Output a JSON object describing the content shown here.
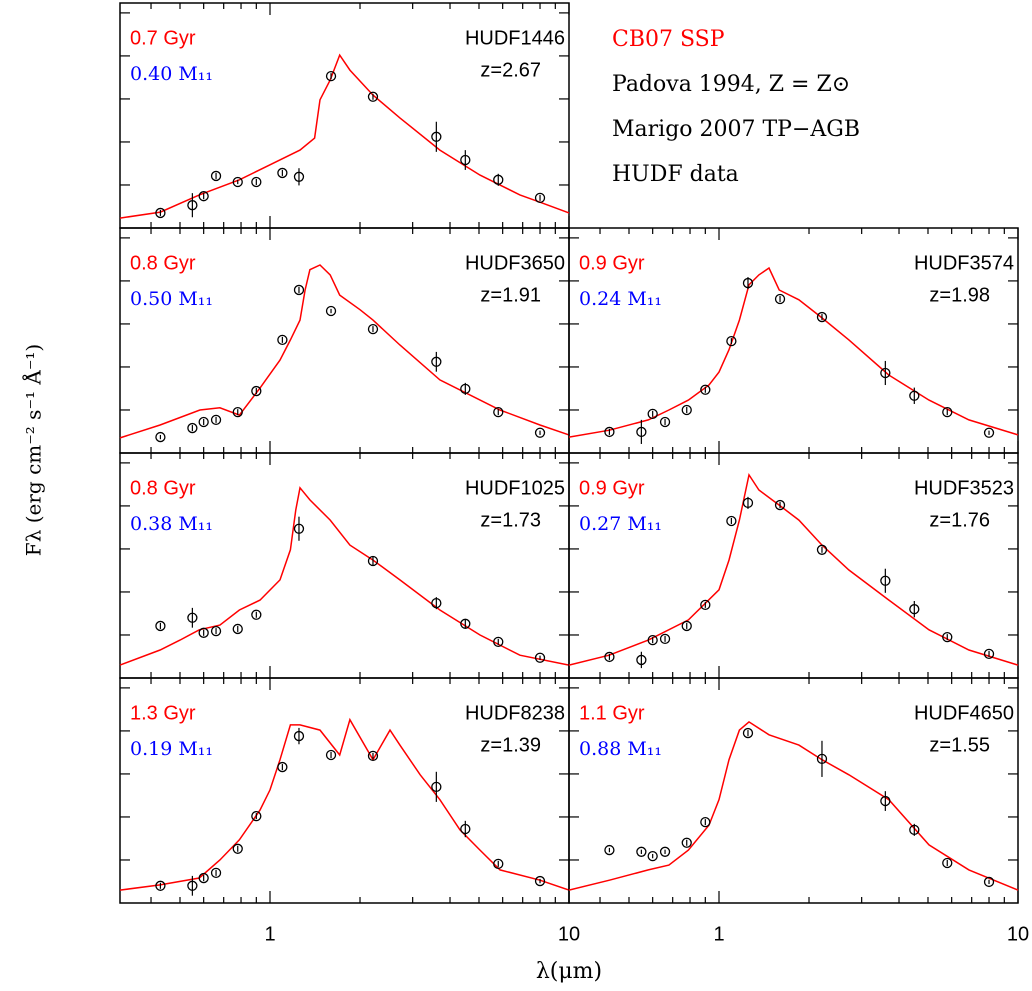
{
  "chart_data": {
    "type": "line",
    "xlabel": "λ(μm)",
    "ylabel": "Fλ  (erg cm⁻² s⁻¹ Å⁻¹)",
    "log_x": true,
    "xlim": [
      0.315,
      10
    ],
    "xticks": [
      1,
      10
    ],
    "xminor": [
      0.4,
      0.5,
      0.6,
      0.7,
      0.8,
      0.9,
      2,
      3,
      4,
      5,
      6,
      7,
      8,
      9
    ],
    "ylim": [
      0,
      5.23
    ],
    "yticks": [
      1,
      2,
      3,
      4,
      5
    ],
    "model_color": "#ff0000",
    "data_color": "#000000",
    "legend": [
      "CB07 SSP",
      "Padova 1994, Z = Z⊙",
      "Marigo 2007 TP−AGB",
      "HUDF data"
    ],
    "panels": [
      {
        "name": "HUDF1446",
        "redshift": "z=2.67",
        "age": "0.7 Gyr",
        "mass": "0.40 M₁₁",
        "model": {
          "x": [
            0.315,
            0.43,
            0.58,
            0.79,
            1.0,
            1.26,
            1.41,
            1.47,
            1.59,
            1.71,
            1.85,
            2.21,
            2.72,
            3.7,
            5.04,
            6.85,
            8.0,
            10
          ],
          "y": [
            0.23,
            0.37,
            0.77,
            1.12,
            1.47,
            1.81,
            2.09,
            2.98,
            3.44,
            4.02,
            3.67,
            3.09,
            2.56,
            1.81,
            1.23,
            0.77,
            0.6,
            0.35
          ]
        },
        "photometry": {
          "x": [
            0.43,
            0.55,
            0.6,
            0.66,
            0.78,
            0.9,
            1.1,
            1.25,
            1.6,
            2.21,
            3.6,
            4.5,
            5.8,
            8.0
          ],
          "y": [
            0.35,
            0.53,
            0.74,
            1.21,
            1.07,
            1.07,
            1.28,
            1.19,
            3.53,
            3.05,
            2.12,
            1.58,
            1.12,
            0.7
          ],
          "err": [
            0.07,
            0.28,
            0.07,
            0.07,
            0.05,
            0.07,
            0.07,
            0.2,
            0.07,
            0.07,
            0.35,
            0.23,
            0.14,
            0.07
          ]
        }
      },
      {
        "name": "HUDF3650",
        "redshift": "z=1.91",
        "age": "0.8 Gyr",
        "mass": "0.50 M₁₁",
        "model": {
          "x": [
            0.315,
            0.429,
            0.583,
            0.68,
            0.79,
            0.926,
            1.08,
            1.17,
            1.26,
            1.31,
            1.36,
            1.47,
            1.59,
            1.71,
            2.0,
            2.21,
            2.72,
            3.7,
            5.88,
            8.0,
            10
          ],
          "y": [
            0.35,
            0.65,
            1.0,
            1.05,
            0.88,
            1.51,
            2.16,
            2.63,
            3.09,
            3.79,
            4.26,
            4.37,
            4.14,
            3.67,
            3.33,
            3.09,
            2.51,
            1.7,
            1.0,
            0.65,
            0.42
          ]
        },
        "photometry": {
          "x": [
            0.43,
            0.55,
            0.6,
            0.66,
            0.78,
            0.9,
            1.1,
            1.25,
            1.6,
            2.21,
            3.6,
            4.5,
            5.8,
            8.0
          ],
          "y": [
            0.37,
            0.58,
            0.72,
            0.77,
            0.95,
            1.44,
            2.63,
            3.79,
            3.3,
            2.88,
            2.12,
            1.49,
            0.95,
            0.47
          ],
          "err": [
            0.05,
            0.07,
            0.07,
            0.07,
            0.07,
            0.07,
            0.07,
            0.07,
            0.05,
            0.07,
            0.23,
            0.14,
            0.07,
            0.05
          ]
        }
      },
      {
        "name": "HUDF3574",
        "redshift": "z=1.98",
        "age": "0.9 Gyr",
        "mass": "0.24 M₁₁",
        "model": {
          "x": [
            0.315,
            0.43,
            0.58,
            0.68,
            0.79,
            0.926,
            1.0,
            1.08,
            1.17,
            1.26,
            1.36,
            1.47,
            1.59,
            1.85,
            2.21,
            2.72,
            3.7,
            5.04,
            6.85,
            10
          ],
          "y": [
            0.37,
            0.53,
            0.77,
            1.0,
            1.23,
            1.58,
            1.88,
            2.4,
            3.09,
            3.91,
            4.14,
            4.3,
            3.79,
            3.56,
            3.14,
            2.63,
            1.81,
            1.23,
            0.77,
            0.42
          ]
        },
        "photometry": {
          "x": [
            0.43,
            0.55,
            0.6,
            0.66,
            0.78,
            0.9,
            1.1,
            1.25,
            1.6,
            2.21,
            3.6,
            4.5,
            5.8,
            8.0
          ],
          "y": [
            0.49,
            0.49,
            0.91,
            0.72,
            1.0,
            1.47,
            2.6,
            3.95,
            3.58,
            3.16,
            1.86,
            1.33,
            0.95,
            0.47
          ],
          "err": [
            0.07,
            0.28,
            0.07,
            0.07,
            0.07,
            0.07,
            0.07,
            0.14,
            0.07,
            0.07,
            0.28,
            0.19,
            0.07,
            0.05
          ]
        }
      },
      {
        "name": "HUDF1025",
        "redshift": "z=1.73",
        "age": "0.8 Gyr",
        "mass": "0.38 M₁₁",
        "model": {
          "x": [
            0.315,
            0.429,
            0.5,
            0.58,
            0.68,
            0.79,
            0.926,
            1.08,
            1.17,
            1.22,
            1.26,
            1.36,
            1.59,
            1.85,
            2.21,
            2.72,
            3.7,
            5.04,
            6.85,
            10
          ],
          "y": [
            0.3,
            0.65,
            0.88,
            1.12,
            1.23,
            1.58,
            1.81,
            2.28,
            2.98,
            3.91,
            4.42,
            4.14,
            3.67,
            3.09,
            2.74,
            2.28,
            1.58,
            1.0,
            0.53,
            0.3
          ]
        },
        "photometry": {
          "x": [
            0.43,
            0.55,
            0.6,
            0.66,
            0.78,
            0.9,
            1.25,
            2.21,
            3.6,
            4.5,
            5.8,
            8.0
          ],
          "y": [
            1.21,
            1.4,
            1.05,
            1.09,
            1.14,
            1.47,
            3.47,
            2.72,
            1.74,
            1.26,
            0.84,
            0.47
          ],
          "err": [
            0.07,
            0.23,
            0.07,
            0.07,
            0.07,
            0.07,
            0.28,
            0.1,
            0.14,
            0.1,
            0.07,
            0.05
          ]
        }
      },
      {
        "name": "HUDF3523",
        "redshift": "z=1.76",
        "age": "0.9 Gyr",
        "mass": "0.27 M₁₁",
        "model": {
          "x": [
            0.315,
            0.429,
            0.58,
            0.79,
            1.0,
            1.08,
            1.17,
            1.26,
            1.36,
            1.59,
            1.85,
            2.21,
            2.72,
            3.7,
            5.04,
            6.85,
            10
          ],
          "y": [
            0.3,
            0.53,
            0.88,
            1.35,
            2.05,
            2.74,
            3.67,
            4.72,
            4.37,
            4.02,
            3.67,
            3.09,
            2.51,
            1.81,
            1.12,
            0.65,
            0.3
          ]
        },
        "photometry": {
          "x": [
            0.43,
            0.55,
            0.6,
            0.66,
            0.78,
            0.9,
            1.1,
            1.25,
            1.6,
            2.21,
            3.6,
            4.5,
            5.8,
            8.0
          ],
          "y": [
            0.49,
            0.42,
            0.88,
            0.91,
            1.21,
            1.7,
            3.65,
            4.07,
            4.02,
            2.98,
            2.26,
            1.6,
            0.95,
            0.56
          ],
          "err": [
            0.07,
            0.19,
            0.07,
            0.07,
            0.07,
            0.07,
            0.07,
            0.14,
            0.07,
            0.07,
            0.28,
            0.19,
            0.07,
            0.07
          ]
        }
      },
      {
        "name": "HUDF8238",
        "redshift": "z=1.39",
        "age": "1.3 Gyr",
        "mass": "0.19 M₁₁",
        "model": {
          "x": [
            0.315,
            0.429,
            0.58,
            0.68,
            0.79,
            0.926,
            1.0,
            1.08,
            1.17,
            1.26,
            1.47,
            1.71,
            1.85,
            2.21,
            2.52,
            2.72,
            3.18,
            3.7,
            4.32,
            5.04,
            5.88,
            8.0,
            10
          ],
          "y": [
            0.3,
            0.42,
            0.58,
            1.0,
            1.47,
            2.16,
            2.63,
            3.33,
            4.14,
            4.14,
            4.02,
            3.44,
            4.26,
            3.33,
            4.02,
            3.67,
            2.98,
            2.4,
            1.7,
            1.23,
            0.77,
            0.53,
            0.3
          ]
        },
        "photometry": {
          "x": [
            0.43,
            0.55,
            0.6,
            0.66,
            0.78,
            0.9,
            1.1,
            1.25,
            1.6,
            2.21,
            3.6,
            4.5,
            5.8,
            8.0
          ],
          "y": [
            0.4,
            0.4,
            0.58,
            0.7,
            1.26,
            2.02,
            3.16,
            3.88,
            3.44,
            3.42,
            2.7,
            1.72,
            0.91,
            0.51
          ],
          "err": [
            0.07,
            0.23,
            0.07,
            0.07,
            0.07,
            0.07,
            0.07,
            0.19,
            0.07,
            0.07,
            0.35,
            0.19,
            0.07,
            0.05
          ]
        }
      },
      {
        "name": "HUDF4650",
        "redshift": "z=1.55",
        "age": "1.1 Gyr",
        "mass": "0.88 M₁₁",
        "model": {
          "x": [
            0.315,
            0.43,
            0.58,
            0.68,
            0.79,
            0.926,
            1.0,
            1.08,
            1.17,
            1.26,
            1.47,
            1.85,
            2.21,
            2.72,
            3.7,
            5.04,
            6.85,
            10
          ],
          "y": [
            0.3,
            0.53,
            0.77,
            0.88,
            1.23,
            1.81,
            2.4,
            3.33,
            4.02,
            4.21,
            3.91,
            3.67,
            3.33,
            2.98,
            2.4,
            1.35,
            0.77,
            0.3
          ]
        },
        "photometry": {
          "x": [
            0.43,
            0.55,
            0.6,
            0.66,
            0.78,
            0.9,
            1.25,
            2.21,
            3.6,
            4.5,
            5.8,
            8.0
          ],
          "y": [
            1.23,
            1.19,
            1.09,
            1.19,
            1.4,
            1.88,
            3.95,
            3.35,
            2.37,
            1.7,
            0.93,
            0.49
          ],
          "err": [
            0.05,
            0.05,
            0.05,
            0.05,
            0.07,
            0.07,
            0.07,
            0.42,
            0.23,
            0.14,
            0.07,
            0.05
          ]
        }
      }
    ]
  }
}
